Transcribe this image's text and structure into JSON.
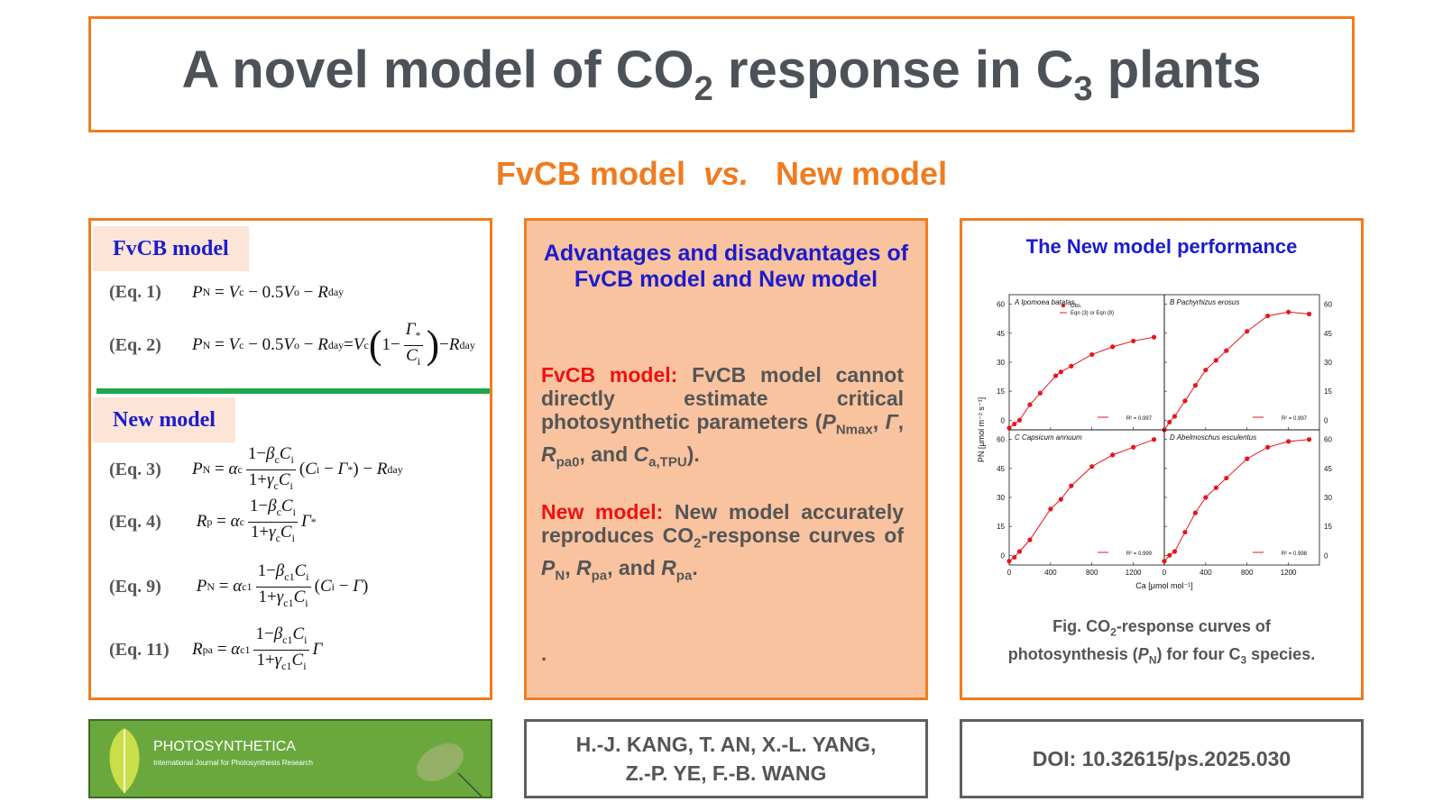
{
  "title": {
    "prefix": "A novel model of CO",
    "sub1": "2",
    "middle": " response in C",
    "sub2": "3",
    "suffix": " plants"
  },
  "subtitle": {
    "left": "FvCB model",
    "vs": "vs.",
    "right": "New model"
  },
  "left_panel": {
    "fvcb_label": "FvCB model",
    "new_label": "New model",
    "eq_labels": [
      "(Eq. 1)",
      "(Eq. 2)",
      "(Eq. 3)",
      "(Eq. 4)",
      "(Eq. 9)",
      "(Eq. 11)"
    ]
  },
  "middle_panel": {
    "heading": "Advantages and disadvantages of FvCB model  and   New model",
    "fvcb_lead": "FvCB model:",
    "fvcb_text": " FvCB model cannot directly estimate critical photosynthetic parameters (",
    "new_lead": "New model:",
    "new_text": " New model accurately reproduces CO",
    "dot": "."
  },
  "right_panel": {
    "heading": "The New model performance",
    "caption_line1_a": "Fig. CO",
    "caption_line1_sub": "2",
    "caption_line1_b": "-response curves of",
    "caption_line2_a": "photosynthesis (",
    "caption_line2_b": ") for four C",
    "caption_line2_sub": "3",
    "caption_line2_c": " species."
  },
  "footer": {
    "journal_name": "PHOTOSYNTHETICA",
    "journal_sub": "International Journal for Photosynthesis Research",
    "authors": "H.-J. KANG, T. AN, X.-L. YANG,\nZ.-P. YE, F.-B. WANG",
    "doi": "DOI: 10.32615/ps.2025.030"
  },
  "chart_data": {
    "type": "scatter",
    "xlabel": "Ca [μmol mol⁻¹]",
    "ylabel": "PN [μmol m⁻² s⁻¹]",
    "xlim": [
      0,
      1500
    ],
    "ylim": [
      -5,
      65
    ],
    "xticks": [
      "0",
      "400",
      "800",
      "1200"
    ],
    "yticks": [
      "0",
      "15",
      "30",
      "45",
      "60"
    ],
    "legend": {
      "obs": "Obs.",
      "fit": "Eqn (3) or Eqn (9)"
    },
    "panels": [
      {
        "letter": "A",
        "species": "Ipomoea batatas",
        "r2": "R² = 0.997",
        "x": [
          0,
          50,
          100,
          200,
          300,
          450,
          500,
          600,
          800,
          1000,
          1200,
          1400
        ],
        "y": [
          -4,
          -2,
          0,
          8,
          14,
          23,
          25,
          28,
          34,
          38,
          41,
          43
        ]
      },
      {
        "letter": "B",
        "species": "Pachyrhizus erosus",
        "r2": "R² = 0.997",
        "x": [
          0,
          50,
          100,
          200,
          300,
          400,
          500,
          600,
          800,
          1000,
          1200,
          1400
        ],
        "y": [
          -5,
          -1,
          2,
          10,
          18,
          26,
          31,
          36,
          46,
          54,
          56,
          55
        ]
      },
      {
        "letter": "C",
        "species": "Capsicum annuum",
        "r2": "R² = 0.999",
        "x": [
          0,
          50,
          100,
          200,
          400,
          500,
          600,
          800,
          1000,
          1200,
          1400
        ],
        "y": [
          -3,
          -1,
          2,
          8,
          24,
          29,
          36,
          46,
          52,
          56,
          60
        ]
      },
      {
        "letter": "D",
        "species": "Abelmoschus esculentus",
        "r2": "R² = 0.998",
        "x": [
          0,
          50,
          100,
          200,
          300,
          400,
          500,
          600,
          800,
          1000,
          1200,
          1400
        ],
        "y": [
          -3,
          0,
          2,
          12,
          22,
          30,
          35,
          40,
          50,
          56,
          59,
          60
        ]
      }
    ]
  }
}
